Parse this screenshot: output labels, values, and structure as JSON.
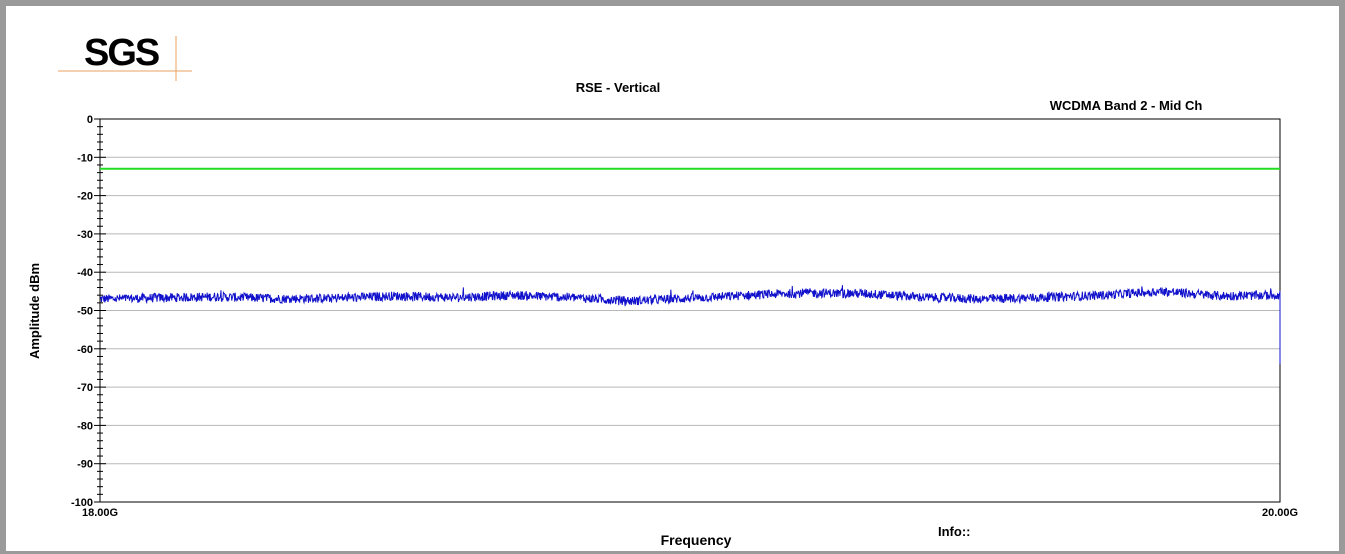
{
  "logo": {
    "text": "SGS",
    "color": "#8a8a8a",
    "line_color": "#e8a060"
  },
  "info": {
    "label": "Info::"
  },
  "chart_data": {
    "type": "line",
    "title": "RSE - Vertical",
    "subtitle": "WCDMA Band 2 - Mid Ch",
    "xlabel": "Frequency",
    "ylabel": "Amplitude dBm",
    "xlim": [
      18.0,
      20.0
    ],
    "ylim": [
      -100,
      0
    ],
    "x_unit": "GHz",
    "x_tick_labels": [
      "18.00G",
      "20.00G"
    ],
    "y_ticks": [
      0,
      -10,
      -20,
      -30,
      -40,
      -50,
      -60,
      -70,
      -80,
      -90,
      -100
    ],
    "grid": true,
    "limit_line": {
      "value": -13,
      "color": "#22dd22"
    },
    "series": [
      {
        "color": "#1111cc",
        "noise_halfwidth_db": 1.2,
        "x": [
          18.0,
          18.1,
          18.2,
          18.3,
          18.4,
          18.5,
          18.6,
          18.7,
          18.8,
          18.9,
          19.0,
          19.1,
          19.2,
          19.3,
          19.4,
          19.5,
          19.6,
          19.7,
          19.8,
          19.9,
          20.0
        ],
        "values": [
          -47.0,
          -46.7,
          -46.4,
          -46.9,
          -46.8,
          -46.2,
          -46.6,
          -46.0,
          -46.6,
          -47.5,
          -46.8,
          -46.0,
          -45.4,
          -45.6,
          -46.6,
          -47.0,
          -46.6,
          -46.0,
          -45.0,
          -46.2,
          -46.0
        ],
        "end_drop": -64
      }
    ]
  }
}
